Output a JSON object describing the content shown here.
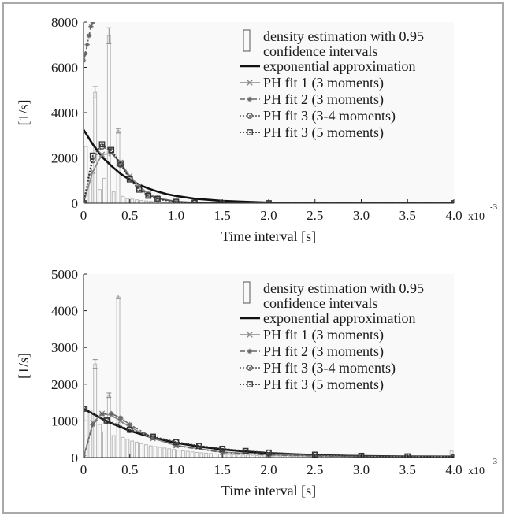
{
  "chart_data": [
    {
      "type": "line",
      "title": "",
      "xlabel": "Time interval [s]",
      "ylabel": "[1/s]",
      "x_multiplier": "x10",
      "x_multiplier_exp": "-3",
      "xlim": [
        0,
        4.0
      ],
      "ylim": [
        0,
        8000
      ],
      "xticks": [
        "0",
        "0.5",
        "1.0",
        "1.5",
        "2.0",
        "2.5",
        "3.0",
        "3.5",
        "4.0"
      ],
      "yticks": [
        "0",
        "2000",
        "4000",
        "6000",
        "8000"
      ],
      "grid": false,
      "legend_position": "top-right",
      "histogram": {
        "name": "density estimation with 0.95 confidence intervals",
        "bin_width": 0.05,
        "heights": [
          2500,
          1400,
          4900,
          600,
          1100,
          7400,
          500,
          3200,
          300,
          200,
          180,
          150,
          120,
          100,
          80,
          60,
          50,
          40,
          30,
          20,
          15,
          10,
          8,
          5
        ],
        "errors": [
          0,
          0,
          250,
          0,
          0,
          350,
          0,
          100,
          0,
          0,
          0,
          0,
          0,
          0,
          0,
          0,
          0,
          0,
          0,
          0,
          0,
          0,
          0,
          0
        ]
      },
      "series": [
        {
          "name": "exponential approximation",
          "style": "solid-black",
          "x": [
            0,
            0.1,
            0.2,
            0.3,
            0.4,
            0.5,
            0.6,
            0.7,
            0.8,
            0.9,
            1.0,
            1.2,
            1.5,
            2.0,
            4.0
          ],
          "y": [
            3250,
            2600,
            2050,
            1650,
            1300,
            1030,
            820,
            650,
            510,
            400,
            320,
            200,
            100,
            25,
            0
          ]
        },
        {
          "name": "PH fit 1 (3 moments)",
          "style": "x-marker",
          "x": [
            0,
            0.1,
            0.2,
            0.3,
            0.4,
            0.5,
            0.6,
            0.7,
            0.8,
            1.0,
            1.2,
            1.5,
            2.0,
            4.0
          ],
          "y": [
            0,
            1400,
            2150,
            2200,
            1800,
            1200,
            750,
            420,
            230,
            80,
            30,
            10,
            0,
            0
          ]
        },
        {
          "name": "PH fit 2 (3 moments)",
          "style": "star-dashdot",
          "x": [
            0,
            0.02,
            0.04,
            0.06,
            0.08,
            0.1
          ],
          "y": [
            6300,
            6600,
            7000,
            7400,
            7800,
            8000
          ]
        },
        {
          "name": "PH fit 3 (3-4 moments)",
          "style": "circle-dotted",
          "x": [
            0,
            0.1,
            0.2,
            0.3,
            0.4,
            0.5,
            0.6,
            0.7,
            0.8,
            1.0,
            1.2,
            1.5,
            2.0,
            4.0
          ],
          "y": [
            0,
            1900,
            2500,
            2300,
            1700,
            1100,
            650,
            380,
            210,
            70,
            25,
            8,
            0,
            0
          ]
        },
        {
          "name": "PH fit 3 (5 moments)",
          "style": "square-dotted",
          "x": [
            0,
            0.1,
            0.2,
            0.3,
            0.4,
            0.5,
            0.6,
            0.7,
            0.8,
            1.0,
            1.2,
            1.5,
            2.0,
            4.0
          ],
          "y": [
            0,
            2100,
            2600,
            2350,
            1750,
            1050,
            600,
            330,
            180,
            60,
            20,
            5,
            0,
            0
          ]
        }
      ]
    },
    {
      "type": "line",
      "title": "",
      "xlabel": "Time interval [s]",
      "ylabel": "[1/s]",
      "x_multiplier": "x10",
      "x_multiplier_exp": "-3",
      "xlim": [
        0,
        4.0
      ],
      "ylim": [
        0,
        5000
      ],
      "xticks": [
        "0",
        "0.5",
        "1.0",
        "1.5",
        "2.0",
        "2.5",
        "3.0",
        "3.5",
        "4.0"
      ],
      "yticks": [
        "0",
        "1000",
        "2000",
        "3000",
        "4000",
        "5000"
      ],
      "grid": false,
      "legend_position": "top-right",
      "histogram": {
        "name": "density estimation with 0.95 confidence intervals",
        "bin_width": 0.05,
        "heights": [
          1400,
          1300,
          2550,
          900,
          700,
          1700,
          600,
          4380,
          550,
          500,
          450,
          420,
          380,
          350,
          320,
          300,
          280,
          260,
          240,
          220,
          200,
          185,
          170,
          155,
          140,
          130,
          120,
          110,
          100,
          95,
          90,
          85,
          80,
          75,
          70,
          65,
          60,
          55,
          50,
          48,
          45,
          42,
          40,
          38,
          35,
          33,
          30,
          28,
          26,
          25,
          23,
          22,
          20,
          19,
          18,
          17,
          16,
          15,
          14,
          13,
          12,
          11,
          10,
          10,
          9,
          8,
          8,
          7,
          7,
          6,
          6,
          6,
          5,
          5,
          5,
          5,
          5,
          5,
          5,
          180
        ],
        "errors": [
          0,
          0,
          120,
          0,
          0,
          60,
          0,
          50,
          0,
          0,
          0,
          0,
          0,
          0,
          0,
          0,
          0,
          0,
          0,
          0,
          0,
          0,
          0,
          0,
          0,
          0,
          0,
          0,
          0,
          0,
          0,
          0,
          0,
          0,
          0,
          0,
          0,
          0,
          0,
          0,
          0,
          0,
          0,
          0,
          0,
          0,
          0,
          0,
          0,
          0,
          0,
          0,
          0,
          0,
          0,
          0,
          0,
          0,
          0,
          0,
          0,
          0,
          0,
          0,
          0,
          0,
          0,
          0,
          0,
          0,
          0,
          0,
          0,
          0,
          0,
          0,
          0,
          0,
          0,
          0
        ]
      },
      "series": [
        {
          "name": "exponential approximation",
          "style": "solid-black",
          "x": [
            0,
            0.25,
            0.5,
            0.75,
            1.0,
            1.25,
            1.5,
            1.75,
            2.0,
            2.5,
            3.0,
            3.5,
            4.0
          ],
          "y": [
            1330,
            990,
            730,
            540,
            400,
            300,
            220,
            165,
            120,
            65,
            40,
            30,
            25
          ]
        },
        {
          "name": "PH fit 1 (3 moments)",
          "style": "x-marker",
          "x": [
            0,
            0.1,
            0.2,
            0.3,
            0.4,
            0.5,
            0.75,
            1.0,
            1.5,
            2.0,
            2.5,
            3.0,
            4.0
          ],
          "y": [
            0,
            950,
            1200,
            1150,
            1000,
            830,
            520,
            330,
            150,
            80,
            50,
            35,
            25
          ]
        },
        {
          "name": "PH fit 2 (3 moments)",
          "style": "star-dashdot",
          "x": [
            0,
            0.1,
            0.2,
            0.3,
            0.4,
            0.5,
            0.75,
            1.0,
            1.5,
            2.0,
            2.5,
            3.0,
            4.0
          ],
          "y": [
            0,
            900,
            1180,
            1200,
            1080,
            900,
            540,
            320,
            140,
            70,
            45,
            30,
            25
          ]
        },
        {
          "name": "PH fit 3 (3-4 moments)",
          "style": "circle-dotted",
          "x": [
            0,
            0.25,
            0.5,
            0.75,
            1.0,
            1.25,
            1.5,
            1.75,
            2.0,
            2.5,
            3.0,
            3.5,
            4.0
          ],
          "y": [
            1330,
            1000,
            750,
            560,
            420,
            315,
            235,
            175,
            130,
            75,
            45,
            32,
            25
          ]
        },
        {
          "name": "PH fit 3 (5 moments)",
          "style": "square-dotted",
          "x": [
            0,
            0.25,
            0.5,
            0.75,
            1.0,
            1.25,
            1.5,
            1.75,
            2.0,
            2.5,
            3.0,
            3.5,
            4.0
          ],
          "y": [
            1330,
            1010,
            760,
            570,
            425,
            320,
            240,
            180,
            135,
            78,
            47,
            33,
            25
          ]
        }
      ]
    }
  ]
}
